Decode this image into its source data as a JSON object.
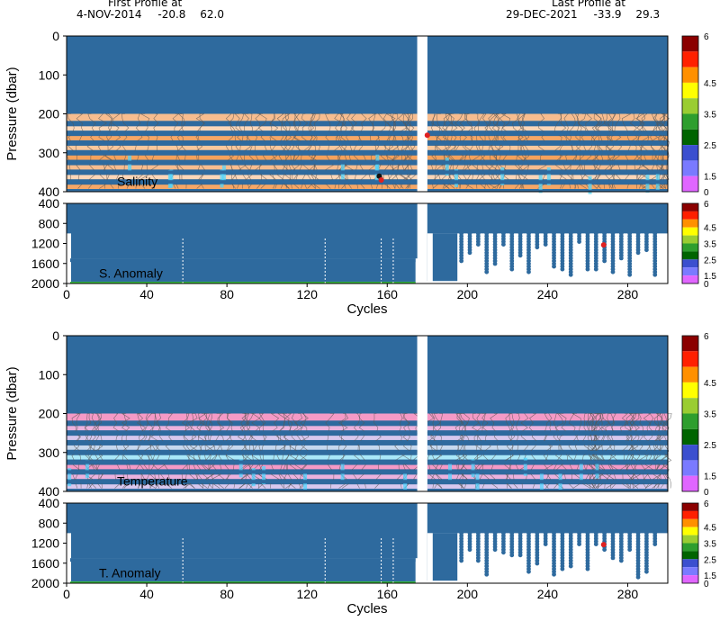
{
  "header": {
    "first_title": "First Profile at",
    "first_date": "4-NOV-2014",
    "first_lat": "-20.8",
    "first_lon": "62.0",
    "last_title": "Last Profile at",
    "last_date": "29-DEC-2021",
    "last_lat": "-33.9",
    "last_lon": "29.3"
  },
  "colorbar": {
    "labels": [
      "6",
      "4.5",
      "3.5",
      "2.5",
      "1.5",
      "0"
    ],
    "colors": [
      "#8b0000",
      "#ff2000",
      "#ff9000",
      "#ffff00",
      "#9acd32",
      "#2e9e2e",
      "#006400",
      "#3b4fcf",
      "#7a7aff",
      "#e066ff"
    ]
  },
  "chart_data": [
    {
      "type": "heatmap",
      "panel": "top",
      "ylabel": "Pressure (dbar)",
      "yticks": [
        "0",
        "100",
        "200",
        "300",
        "400"
      ],
      "ylim": [
        0,
        400
      ],
      "xlim": [
        0,
        300
      ],
      "gap": [
        175,
        180
      ],
      "inner_label": "Salinity",
      "band_palette": [
        "#f7bd8f",
        "#fbd6b8",
        "#f6a766",
        "#fbc89c",
        "#f5a25c"
      ],
      "highlight_points": [
        {
          "x": 156,
          "y": 360
        },
        {
          "x": 157,
          "y": 370
        },
        {
          "x": 180,
          "y": 255
        }
      ]
    },
    {
      "type": "heatmap",
      "panel": "top-anomaly",
      "yticks": [
        "400",
        "800",
        "1200",
        "1600",
        "2000"
      ],
      "ylim": [
        400,
        2000
      ],
      "xlim": [
        0,
        300
      ],
      "inner_label": "S. Anomaly",
      "max_depth_profile": [
        {
          "x": 0,
          "d": 2000
        },
        {
          "x": 1,
          "d": 1000
        },
        {
          "x": 3,
          "d": 1500
        },
        {
          "x": 175,
          "d": 1500
        },
        {
          "x": 180,
          "d": 1500
        },
        {
          "x": 183,
          "d": 2000
        },
        {
          "x": 195,
          "d": 1950
        },
        {
          "x": 200,
          "d": 1000
        },
        {
          "x": 290,
          "d": 1000
        },
        {
          "x": 296,
          "d": 1100
        },
        {
          "x": 300,
          "d": 1000
        }
      ],
      "highlight_points": [
        {
          "x": 268,
          "y": 1230
        }
      ]
    },
    {
      "type": "heatmap",
      "panel": "bottom",
      "ylabel": "Pressure (dbar)",
      "yticks": [
        "0",
        "100",
        "200",
        "300",
        "400"
      ],
      "ylim": [
        0,
        400
      ],
      "xlim": [
        0,
        300
      ],
      "gap": [
        175,
        180
      ],
      "inner_label": "Temperature",
      "band_palette": [
        "#f59ac6",
        "#ecb2dd",
        "#d8c8ee",
        "#c6d8ee",
        "#a9e7f8"
      ]
    },
    {
      "type": "heatmap",
      "panel": "bottom-anomaly",
      "xlabel": "Cycles",
      "xticks": [
        "0",
        "40",
        "80",
        "120",
        "160",
        "200",
        "240",
        "280"
      ],
      "yticks": [
        "400",
        "800",
        "1200",
        "1600",
        "2000"
      ],
      "ylim": [
        400,
        2000
      ],
      "xlim": [
        0,
        300
      ],
      "inner_label": "T. Anomaly",
      "max_depth_profile": [
        {
          "x": 0,
          "d": 2000
        },
        {
          "x": 1,
          "d": 1000
        },
        {
          "x": 3,
          "d": 1500
        },
        {
          "x": 175,
          "d": 1500
        },
        {
          "x": 180,
          "d": 1500
        },
        {
          "x": 183,
          "d": 2000
        },
        {
          "x": 195,
          "d": 1950
        },
        {
          "x": 200,
          "d": 1000
        },
        {
          "x": 290,
          "d": 1000
        },
        {
          "x": 296,
          "d": 1100
        },
        {
          "x": 300,
          "d": 1000
        }
      ],
      "highlight_points": [
        {
          "x": 268,
          "y": 1230
        }
      ]
    }
  ]
}
